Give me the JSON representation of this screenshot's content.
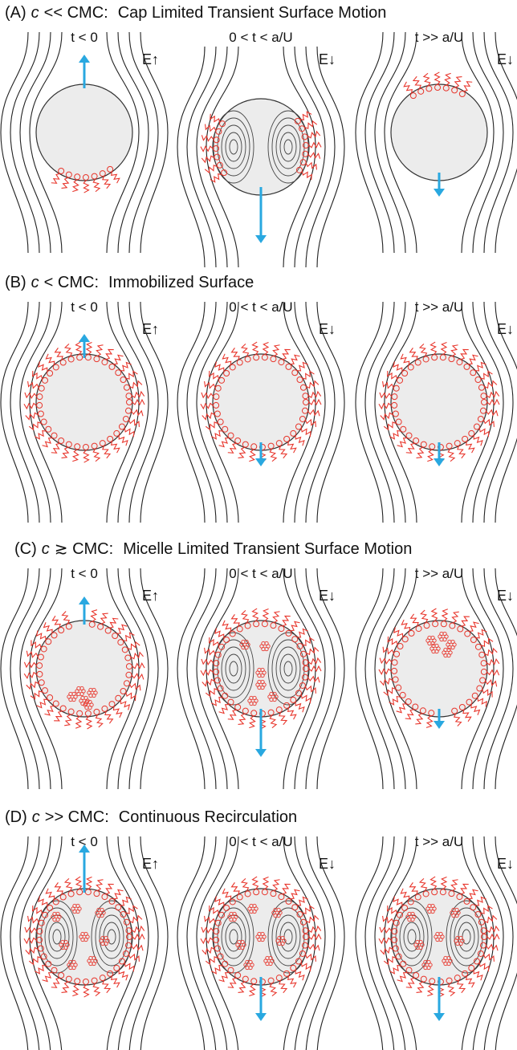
{
  "panels": [
    {
      "label": "(A)",
      "variable": "c",
      "condition": "<< CMC:",
      "description": "Cap Limited Transient Surface Motion",
      "frames": [
        {
          "time": "t < 0",
          "field": "E↑"
        },
        {
          "time": "0 < t < a/U",
          "field": "E↓"
        },
        {
          "time": "t >> a/U",
          "field": "E↓"
        }
      ]
    },
    {
      "label": "(B)",
      "variable": "c",
      "condition": "< CMC:",
      "description": "Immobilized Surface",
      "frames": [
        {
          "time": "t < 0",
          "field": "E↑"
        },
        {
          "time": "0 < t < a/U",
          "field": "E↓"
        },
        {
          "time": "t >> a/U",
          "field": "E↓"
        }
      ]
    },
    {
      "label": "(C)",
      "variable": "c",
      "condition": "≳ CMC:",
      "description": "Micelle Limited Transient Surface Motion",
      "frames": [
        {
          "time": "t < 0",
          "field": "E↑"
        },
        {
          "time": "0 < t < a/U",
          "field": "E↓"
        },
        {
          "time": "t >> a/U",
          "field": "E↓"
        }
      ]
    },
    {
      "label": "(D)",
      "variable": "c",
      "condition": ">> CMC:",
      "description": "Continuous Recirculation",
      "frames": [
        {
          "time": "t < 0",
          "field": "E↑"
        },
        {
          "time": "0 < t < a/U",
          "field": "E↓"
        },
        {
          "time": "t >> a/U",
          "field": "E↓"
        }
      ]
    }
  ]
}
